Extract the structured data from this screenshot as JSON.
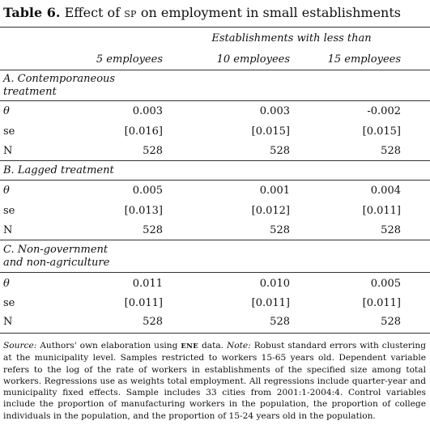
{
  "caption": {
    "number": "Table 6.",
    "title_pre": "Effect of",
    "title_sc": "SP",
    "title_post": "on employment in small establishments"
  },
  "header": {
    "group": "Establishments with less than",
    "columns": [
      "5 employees",
      "10 employees",
      "15 employees"
    ]
  },
  "panels": [
    {
      "label_lines": [
        "A. Contemporaneous",
        "treatment"
      ],
      "rows": [
        {
          "label": "θ",
          "values": [
            "0.003",
            "0.003",
            "-0.002"
          ]
        },
        {
          "label": "se",
          "values": [
            "[0.016]",
            "[0.015]",
            "[0.015]"
          ]
        },
        {
          "label": "N",
          "values": [
            "528",
            "528",
            "528"
          ]
        }
      ]
    },
    {
      "label_lines": [
        "B. Lagged treatment"
      ],
      "rows": [
        {
          "label": "θ",
          "values": [
            "0.005",
            "0.001",
            "0.004"
          ]
        },
        {
          "label": "se",
          "values": [
            "[0.013]",
            "[0.012]",
            "[0.011]"
          ]
        },
        {
          "label": "N",
          "values": [
            "528",
            "528",
            "528"
          ]
        }
      ]
    },
    {
      "label_lines": [
        "C. Non-government",
        "and non-agriculture"
      ],
      "rows": [
        {
          "label": "θ",
          "values": [
            "0.011",
            "0.010",
            "0.005"
          ]
        },
        {
          "label": "se",
          "values": [
            "[0.011]",
            "[0.011]",
            "[0.011]"
          ]
        },
        {
          "label": "N",
          "values": [
            "528",
            "528",
            "528"
          ]
        }
      ]
    }
  ],
  "note": {
    "source_label": "Source:",
    "source_pre": "Authors' own elaboration using",
    "source_sc": "ENE",
    "source_post": "data.",
    "note_label": "Note:",
    "note_text": "Robust standard errors with clustering at the municipality level. Samples restricted to workers 15-65 years old. Dependent variable refers to the log of the rate of workers in establishments of the specified size among total workers. Regressions use as weights total employment. All regressions include quarter-year and municipality fixed effects. Sample includes 33 cities from 2001:1-2004:4. Control variables include the proportion of manufacturing workers in the population, the proportion of college individuals in the population, and the proportion of 15-24 years old in the population."
  }
}
